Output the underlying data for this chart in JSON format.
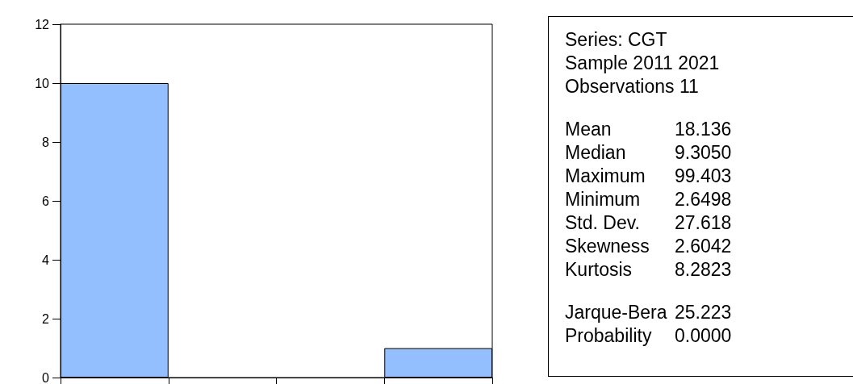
{
  "chart_data": [
    {
      "type": "bar",
      "categories": [
        null,
        null,
        null,
        null
      ],
      "values": [
        10,
        0,
        0,
        1
      ],
      "color": "#94bfff",
      "ylim": [
        0,
        12
      ],
      "yticks": [
        0,
        2,
        4,
        6,
        8,
        10,
        12
      ],
      "grid": false
    },
    {
      "type": "other",
      "annotations": [
        "Series: CGT",
        "Sample 2011 2021",
        "Observations 11",
        "Mean",
        "18.136",
        "Median",
        "9.3050",
        "Maximum",
        "99.403",
        "Minimum",
        "2.6498",
        "Std. Dev.",
        "27.618",
        "Skewness",
        "2.6042",
        "Kurtosis",
        "8.2823",
        "Jarque-Bera",
        "25.223",
        "Probability",
        "0.0000"
      ]
    }
  ]
}
